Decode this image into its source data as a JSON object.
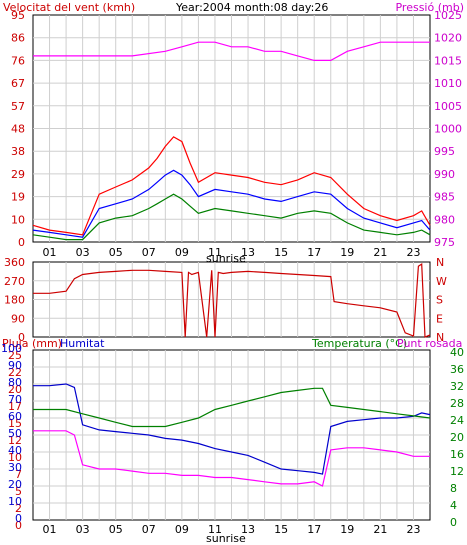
{
  "header": {
    "wind_label": "Velocitat del vent (kmh)",
    "date_label": "Year:2004 month:08 day:26",
    "pressure_label": "Pressió (mb)"
  },
  "colors": {
    "wind_gust": "#ff0000",
    "wind_avg": "#0000ff",
    "wind_min": "#008000",
    "pressure": "#ff00ff",
    "direction": "#cc0000",
    "humidity": "#0000cc",
    "temperature": "#008000",
    "dewpoint": "#ff00ff",
    "grid": "#cfcfcf",
    "axis_red": "#cc0000",
    "axis_blue": "#0000cc",
    "axis_green": "#008000",
    "axis_magenta": "#cc00cc"
  },
  "sunrise_label": "sunrise",
  "chart_data": [
    {
      "id": "wind",
      "type": "line",
      "title": "Velocitat del vent (kmh)",
      "y_left": {
        "label": "Velocitat del vent (kmh)",
        "ticks": [
          "95",
          "86",
          "76",
          "67",
          "57",
          "48",
          "38",
          "29",
          "19",
          "10",
          "0"
        ],
        "ylim": [
          0,
          95
        ]
      },
      "y_right": {
        "label": "Pressió (mb)",
        "ticks": [
          "1025",
          "1020",
          "1015",
          "1010",
          "1005",
          "1000",
          "995",
          "990",
          "985",
          "980",
          "975"
        ],
        "ylim": [
          975,
          1025
        ]
      },
      "x_ticks": [
        "01",
        "03",
        "05",
        "07",
        "09",
        "11",
        "13",
        "15",
        "17",
        "19",
        "21",
        "23"
      ],
      "x_range": [
        0,
        24
      ],
      "series": [
        {
          "name": "gust",
          "color": "#ff0000",
          "x": [
            0,
            1,
            2,
            3,
            4,
            5,
            6,
            7,
            7.5,
            8,
            8.5,
            9,
            9.5,
            10,
            11,
            12,
            13,
            14,
            15,
            16,
            17,
            18,
            19,
            20,
            21,
            22,
            23,
            23.5,
            24
          ],
          "y": [
            7,
            5,
            4,
            3,
            20,
            23,
            26,
            31,
            35,
            40,
            44,
            42,
            33,
            25,
            29,
            28,
            27,
            25,
            24,
            26,
            29,
            27,
            20,
            14,
            11,
            9,
            11,
            13,
            7
          ]
        },
        {
          "name": "average",
          "color": "#0000ff",
          "x": [
            0,
            1,
            2,
            3,
            4,
            5,
            6,
            7,
            7.5,
            8,
            8.5,
            9,
            9.5,
            10,
            11,
            12,
            13,
            14,
            15,
            16,
            17,
            18,
            19,
            20,
            21,
            22,
            23,
            23.5,
            24
          ],
          "y": [
            5,
            4,
            3,
            2,
            14,
            16,
            18,
            22,
            25,
            28,
            30,
            28,
            24,
            19,
            22,
            21,
            20,
            18,
            17,
            19,
            21,
            20,
            14,
            10,
            8,
            6,
            8,
            9,
            5
          ]
        },
        {
          "name": "minimum",
          "color": "#008000",
          "x": [
            0,
            1,
            2,
            3,
            4,
            5,
            6,
            7,
            7.5,
            8,
            8.5,
            9,
            9.5,
            10,
            11,
            12,
            13,
            14,
            15,
            16,
            17,
            18,
            19,
            20,
            21,
            22,
            23,
            23.5,
            24
          ],
          "y": [
            3,
            2,
            1,
            1,
            8,
            10,
            11,
            14,
            16,
            18,
            20,
            18,
            15,
            12,
            14,
            13,
            12,
            11,
            10,
            12,
            13,
            12,
            8,
            5,
            4,
            3,
            4,
            5,
            3
          ]
        },
        {
          "name": "Pressió (mb)",
          "axis": "right",
          "color": "#ff00ff",
          "x": [
            0,
            2,
            4,
            6,
            8,
            9,
            10,
            11,
            12,
            13,
            14,
            15,
            16,
            17,
            18,
            19,
            20,
            21,
            22,
            23,
            24
          ],
          "y": [
            1016,
            1016,
            1016,
            1016,
            1017,
            1018,
            1019,
            1019,
            1018,
            1018,
            1017,
            1017,
            1016,
            1015,
            1015,
            1017,
            1018,
            1019,
            1019,
            1019,
            1019
          ]
        }
      ]
    },
    {
      "id": "direction",
      "type": "line",
      "y_left": {
        "ticks": [
          "360",
          "270",
          "180",
          "90",
          "0"
        ],
        "ylim": [
          0,
          360
        ]
      },
      "y_right": {
        "ticks": [
          "N",
          "W",
          "S",
          "E",
          "N"
        ]
      },
      "x_range": [
        0,
        24
      ],
      "series": [
        {
          "name": "direction",
          "color": "#cc0000",
          "x": [
            0,
            1,
            2,
            2.5,
            3,
            4,
            5,
            6,
            7,
            8,
            9,
            9.2,
            9.4,
            9.6,
            10,
            10.5,
            10.8,
            11,
            11.2,
            11.5,
            12,
            13,
            14,
            15,
            16,
            17,
            18,
            18.2,
            19,
            20,
            21,
            22,
            22.5,
            23,
            23.3,
            23.5,
            23.7,
            24
          ],
          "y": [
            210,
            210,
            220,
            280,
            300,
            310,
            315,
            320,
            320,
            315,
            310,
            0,
            310,
            300,
            310,
            0,
            320,
            0,
            310,
            305,
            310,
            315,
            310,
            305,
            300,
            295,
            290,
            170,
            160,
            150,
            140,
            120,
            20,
            5,
            340,
            350,
            0,
            10
          ]
        }
      ]
    },
    {
      "id": "humidity_temp",
      "type": "line",
      "title": "",
      "y_left": {
        "labels": [
          "Pluja (mm)",
          "Humitat"
        ],
        "rain_ticks": [
          "25",
          "22",
          "20",
          "17",
          "15",
          "12",
          "10",
          "7",
          "5",
          "2",
          "0"
        ],
        "humidity_ticks": [
          "100",
          "90",
          "80",
          "70",
          "60",
          "50",
          "40",
          "30",
          "20",
          "10",
          "0"
        ],
        "ylim": [
          0,
          100
        ]
      },
      "y_right": {
        "labels": [
          "Temperatura (°C)",
          "Punt rosada"
        ],
        "ticks": [
          "40",
          "36",
          "32",
          "28",
          "24",
          "20",
          "16",
          "12",
          "8",
          "4",
          "0"
        ],
        "ylim": [
          0,
          40
        ]
      },
      "x_ticks": [
        "01",
        "03",
        "05",
        "07",
        "09",
        "11",
        "13",
        "15",
        "17",
        "19",
        "21",
        "23"
      ],
      "x_range": [
        0,
        24
      ],
      "series": [
        {
          "name": "Humitat",
          "color": "#0000cc",
          "x": [
            0,
            1,
            2,
            2.5,
            3,
            4,
            5,
            6,
            7,
            8,
            9,
            10,
            11,
            12,
            13,
            14,
            15,
            16,
            17,
            17.5,
            18,
            19,
            20,
            21,
            22,
            23,
            23.5,
            24
          ],
          "y": [
            79,
            79,
            80,
            78,
            56,
            53,
            52,
            51,
            50,
            48,
            47,
            45,
            42,
            40,
            38,
            34,
            30,
            29,
            28,
            27,
            55,
            58,
            59,
            60,
            60,
            61,
            63,
            62
          ]
        },
        {
          "name": "Temperatura (°C)",
          "axis": "right",
          "color": "#008000",
          "x": [
            0,
            1,
            2,
            3,
            4,
            5,
            6,
            7,
            8,
            9,
            10,
            11,
            12,
            13,
            14,
            15,
            16,
            17,
            17.5,
            18,
            19,
            20,
            21,
            22,
            23,
            24
          ],
          "y": [
            26,
            26,
            26,
            25,
            24,
            23,
            22,
            22,
            22,
            23,
            24,
            26,
            27,
            28,
            29,
            30,
            30.5,
            31,
            31,
            27,
            26.5,
            26,
            25.5,
            25,
            24.5,
            24
          ]
        },
        {
          "name": "Punt rosada",
          "axis": "right",
          "color": "#ff00ff",
          "x": [
            0,
            1,
            2,
            2.5,
            3,
            4,
            5,
            6,
            7,
            8,
            9,
            10,
            11,
            12,
            13,
            14,
            15,
            16,
            17,
            17.5,
            18,
            19,
            20,
            21,
            22,
            23,
            24
          ],
          "y": [
            21,
            21,
            21,
            20,
            13,
            12,
            12,
            11.5,
            11,
            11,
            10.5,
            10.5,
            10,
            10,
            9.5,
            9,
            8.5,
            8.5,
            9,
            8,
            16.5,
            17,
            17,
            16.5,
            16,
            15,
            15
          ]
        }
      ]
    }
  ]
}
